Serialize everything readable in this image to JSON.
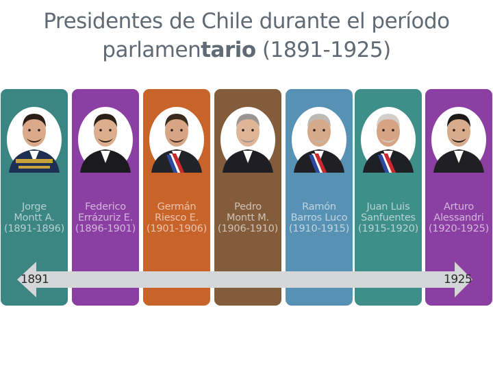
{
  "title": {
    "line1": "Presidentes de Chile durante el período",
    "line2_pre": "parlamen",
    "line2_bold": "tario",
    "line2_post": " (1891-1925)"
  },
  "colors": {
    "teal": "#3b8583",
    "purple": "#8c3fa2",
    "orange": "#c8642a",
    "brown": "#835c3c",
    "blue": "#5791b4",
    "teal_light": "#3e8e8a",
    "bar": "#d4d6d7"
  },
  "presidents": [
    {
      "line1": "Jorge",
      "line2": "Montt A.",
      "line3": "(1891-1896)",
      "color": "#3b8583",
      "portrait": "jorge-montt-portrait"
    },
    {
      "line1": "Federico",
      "line2": "Errázuriz E.",
      "line3": "(1896-1901)",
      "color": "#8c3fa2",
      "portrait": "federico-errazuriz-portrait"
    },
    {
      "line1": "Germán",
      "line2": "Riesco E.",
      "line3": "(1901-1906)",
      "color": "#c8642a",
      "portrait": "german-riesco-portrait"
    },
    {
      "line1": "Pedro",
      "line2": "Montt M.",
      "line3": "(1906-1910)",
      "color": "#835c3c",
      "portrait": "pedro-montt-portrait"
    },
    {
      "line1": "Ramón",
      "line2": "Barros Luco",
      "line3": "(1910-1915)",
      "color": "#5791b4",
      "portrait": "ramon-barros-luco-portrait"
    },
    {
      "line1": "Juan Luis",
      "line2": "Sanfuentes",
      "line3": "(1915-1920)",
      "color": "#3e8e8a",
      "portrait": "juan-luis-sanfuentes-portrait"
    },
    {
      "line1": "Arturo",
      "line2": "Alessandri",
      "line3": "(1920-1925)",
      "color": "#8c3fa2",
      "portrait": "arturo-alessandri-portrait"
    }
  ],
  "timeline": {
    "start": "1891",
    "end": "1925"
  }
}
